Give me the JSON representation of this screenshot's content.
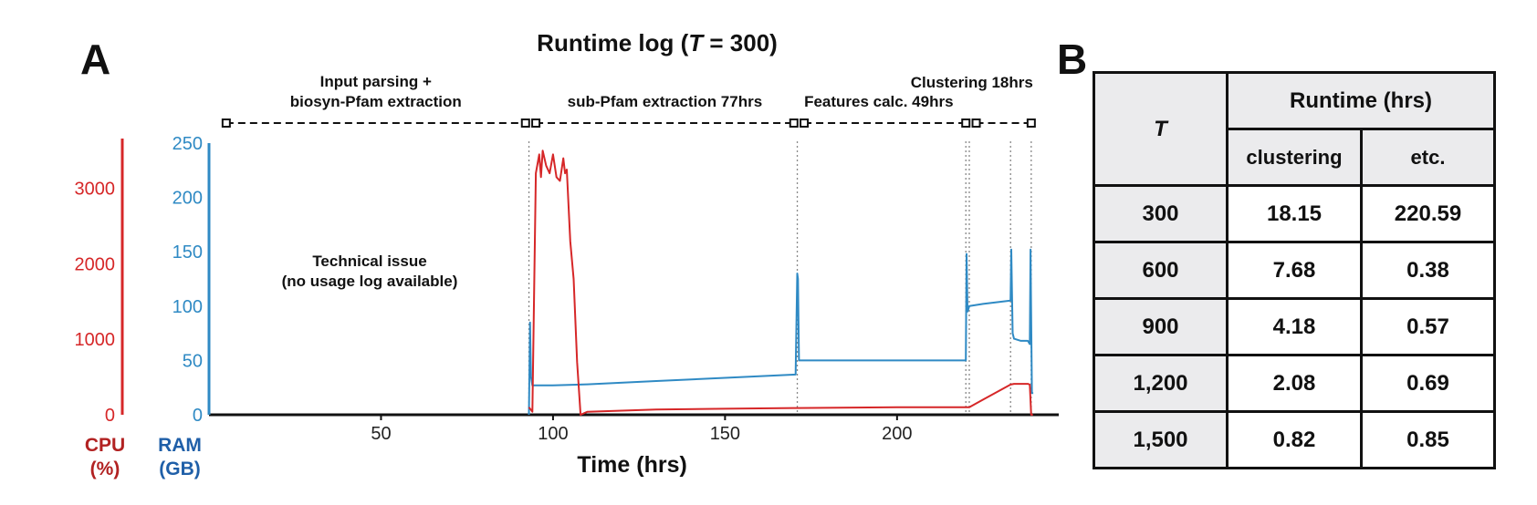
{
  "panel_a": {
    "letter": "A",
    "title_prefix": "Runtime log (",
    "title_var": "T",
    "title_suffix": " = 300)"
  },
  "panel_b": {
    "letter": "B"
  },
  "colors": {
    "cpu": "#d62728",
    "ram": "#2f8ac4",
    "cpu_label": "#b22222",
    "ram_label": "#1f5fa8",
    "text": "#111111"
  },
  "chart_data": {
    "type": "line",
    "title": "Runtime log (T = 300)",
    "xlabel": "Time (hrs)",
    "xlim": [
      0,
      247
    ],
    "x_ticks": [
      50,
      100,
      150,
      200
    ],
    "axes": {
      "ram": {
        "label_line1": "RAM",
        "label_line2": "(GB)",
        "ylim": [
          0,
          250
        ],
        "ticks": [
          0,
          50,
          100,
          150,
          200,
          250
        ]
      },
      "cpu": {
        "label_line1": "CPU",
        "label_line2": "(%)",
        "ylim": [
          0,
          3600
        ],
        "ticks": [
          0,
          1000,
          2000,
          3000
        ]
      }
    },
    "phases": [
      {
        "label_line1": "Input parsing +",
        "label_line2": "biosyn-Pfam extraction",
        "start": 5,
        "end": 92
      },
      {
        "label_line1": "sub-Pfam extraction 77hrs",
        "label_line2": "",
        "start": 95,
        "end": 170
      },
      {
        "label_line1": "Features calc. 49hrs",
        "label_line2": "",
        "start": 173,
        "end": 220
      },
      {
        "label_line1": "Clustering 18hrs",
        "label_line2": "",
        "start": 223,
        "end": 239
      }
    ],
    "boundaries": [
      93,
      171,
      220,
      221,
      233,
      239
    ],
    "annotation": {
      "line1": "Technical issue",
      "line2": "(no usage log available)"
    },
    "series": [
      {
        "name": "RAM",
        "axis": "ram",
        "x": [
          93,
          93.3,
          93.6,
          94,
          100,
          110,
          130,
          150,
          170.5,
          171,
          171.2,
          171.5,
          175,
          200,
          220,
          220.2,
          220.5,
          221,
          225,
          233,
          233.2,
          233.6,
          234,
          236,
          238,
          238.6,
          238.8,
          239.2,
          239.6
        ],
        "y": [
          0,
          85,
          35,
          27,
          27,
          28,
          31,
          34,
          37,
          130,
          125,
          50,
          50,
          50,
          50,
          148,
          95,
          100,
          102,
          105,
          152,
          75,
          70,
          68,
          68,
          65,
          152,
          20,
          20
        ]
      },
      {
        "name": "CPU",
        "axis": "cpu",
        "x": [
          93,
          94,
          95,
          96,
          96.5,
          97,
          98,
          99,
          100,
          101,
          102,
          103,
          103.5,
          104,
          105,
          106,
          107,
          108,
          110,
          130,
          150,
          170,
          171,
          200,
          220,
          221,
          225,
          233,
          234,
          238,
          238.6,
          239,
          239.5
        ],
        "y": [
          100,
          40,
          3200,
          3450,
          3150,
          3500,
          3300,
          3200,
          3450,
          3150,
          3100,
          3400,
          3200,
          3250,
          2300,
          1800,
          700,
          0,
          40,
          70,
          80,
          90,
          90,
          100,
          100,
          100,
          200,
          400,
          410,
          410,
          400,
          0,
          0
        ]
      }
    ]
  },
  "table": {
    "header_T": "T",
    "header_runtime": "Runtime (hrs)",
    "header_clustering": "clustering",
    "header_etc": "etc.",
    "rows": [
      {
        "T": "300",
        "clustering": "18.15",
        "etc": "220.59"
      },
      {
        "T": "600",
        "clustering": "7.68",
        "etc": "0.38"
      },
      {
        "T": "900",
        "clustering": "4.18",
        "etc": "0.57"
      },
      {
        "T": "1,200",
        "clustering": "2.08",
        "etc": "0.69"
      },
      {
        "T": "1,500",
        "clustering": "0.82",
        "etc": "0.85"
      }
    ]
  }
}
